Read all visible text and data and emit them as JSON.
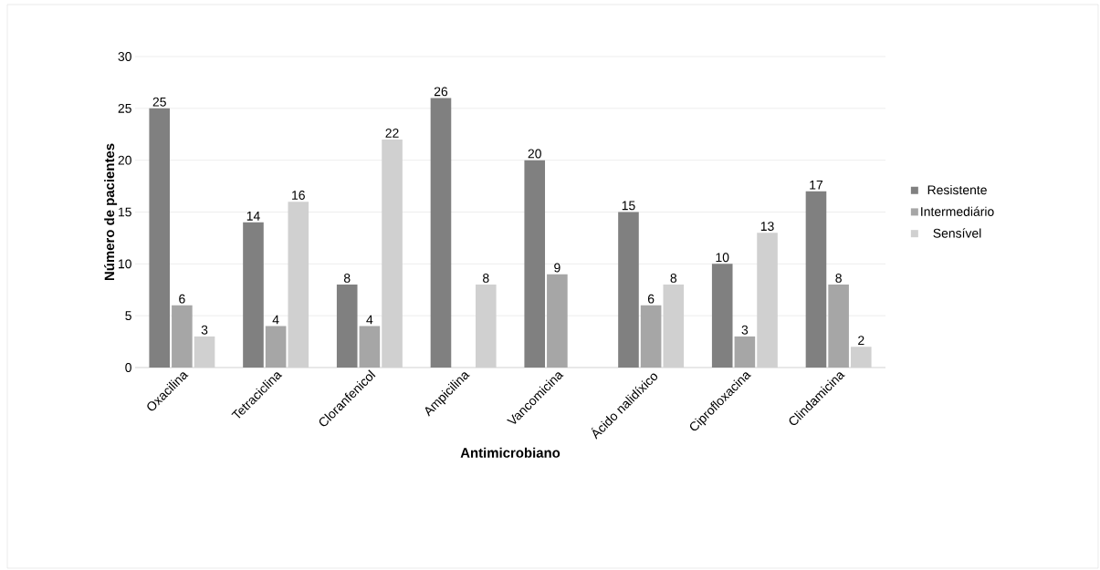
{
  "chart_data": {
    "type": "bar",
    "xlabel": "Antimicrobiano",
    "ylabel": "Número de pacientes",
    "categories": [
      "Oxacilina",
      "Tetraciclina",
      "Cloranfenicol",
      "Ampicilina",
      "Vancomicina",
      "Ácido nalidíxico",
      "Ciprofloxacina",
      "Clindamicina"
    ],
    "series": [
      {
        "name": "Resistente",
        "color": "#808080",
        "values": [
          25,
          14,
          8,
          26,
          20,
          15,
          10,
          17
        ]
      },
      {
        "name": "Intermediário",
        "color": "#a6a6a6",
        "values": [
          6,
          4,
          4,
          null,
          9,
          6,
          3,
          8
        ]
      },
      {
        "name": "Sensível",
        "color": "#d0d0d0",
        "values": [
          3,
          16,
          22,
          8,
          null,
          8,
          13,
          2
        ]
      }
    ],
    "ylim": [
      0,
      30
    ],
    "yticks": [
      0,
      5,
      10,
      15,
      20,
      25,
      30
    ],
    "grid": "y",
    "legend": "right",
    "data_labels": true
  }
}
